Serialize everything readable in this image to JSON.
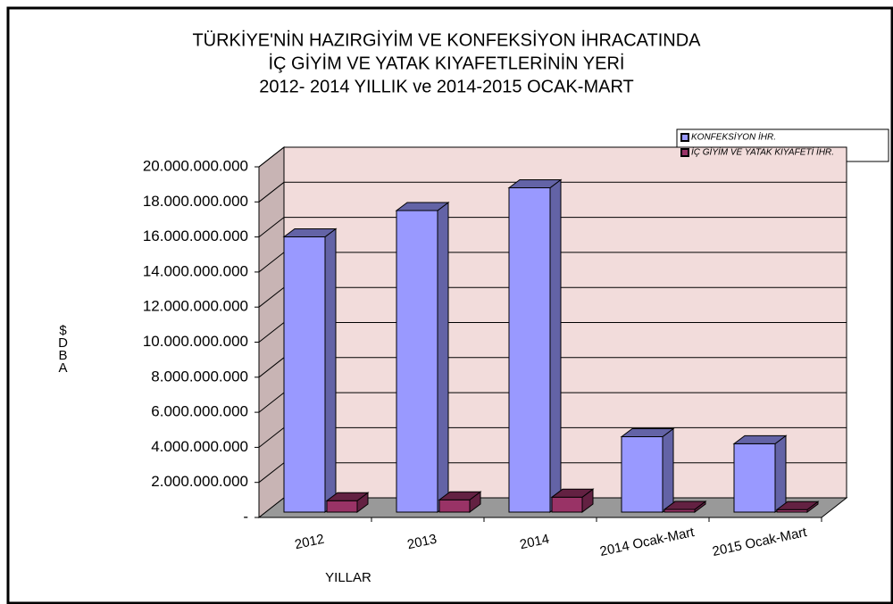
{
  "chart_data": {
    "type": "bar3d",
    "title": [
      "TÜRKİYE'NİN HAZIRGİYİM VE KONFEKSİYON İHRACATINDA",
      "İÇ GİYİM VE YATAK KIYAFETLERİNİN YERİ",
      "2012- 2014 YILLIK  ve 2014-2015 OCAK-MART"
    ],
    "x_label": "YILLAR",
    "y_label": "$DBA",
    "categories": [
      "2012",
      "2013",
      "2014",
      "2014 Ocak-Mart",
      "2015 Ocak-Mart"
    ],
    "series": [
      {
        "name": "KONFEKSİYON İHR.",
        "color": "#9999ff",
        "values": [
          15700000000,
          17200000000,
          18500000000,
          4300000000,
          3900000000
        ]
      },
      {
        "name": "İÇ GİYİM VE YATAK KIYAFETİ İHR.",
        "color": "#993366",
        "values": [
          650000000,
          700000000,
          850000000,
          150000000,
          140000000
        ]
      }
    ],
    "ylim": [
      0,
      20000000000
    ],
    "yticks": [
      {
        "value": 0,
        "label": "-"
      },
      {
        "value": 2000000000,
        "label": "2.000.000.000"
      },
      {
        "value": 4000000000,
        "label": "4.000.000.000"
      },
      {
        "value": 6000000000,
        "label": "6.000.000.000"
      },
      {
        "value": 8000000000,
        "label": "8.000.000.000"
      },
      {
        "value": 10000000000,
        "label": "10.000.000.000"
      },
      {
        "value": 12000000000,
        "label": "12.000.000.000"
      },
      {
        "value": 14000000000,
        "label": "14.000.000.000"
      },
      {
        "value": 16000000000,
        "label": "16.000.000.000"
      },
      {
        "value": 18000000000,
        "label": "18.000.000.000"
      },
      {
        "value": 20000000000,
        "label": "20.000.000.000"
      }
    ],
    "grid": true,
    "legend": "top-right"
  }
}
